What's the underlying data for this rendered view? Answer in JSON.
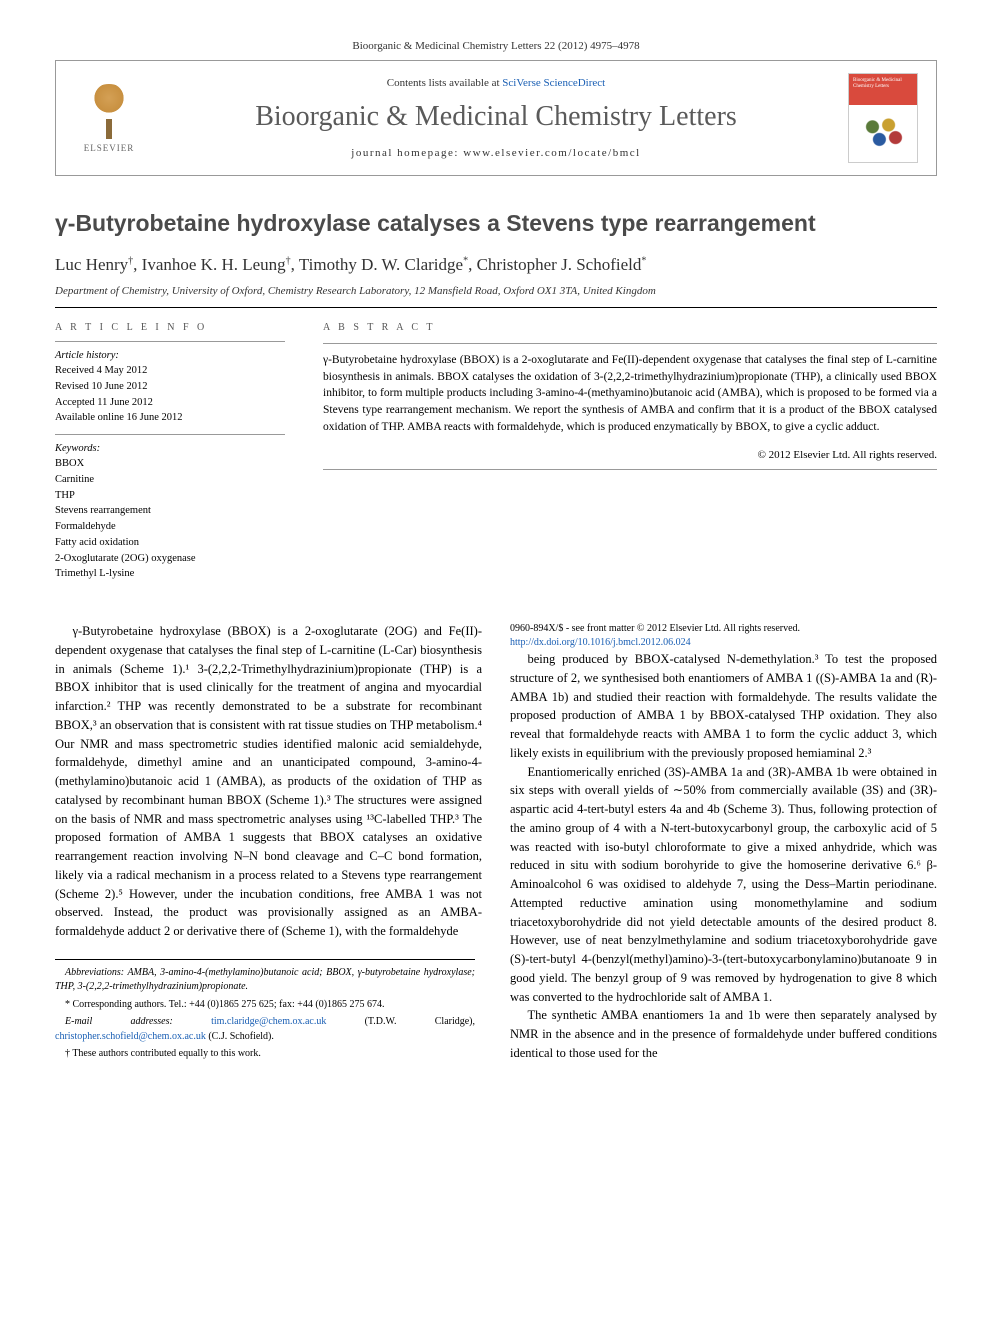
{
  "citation": "Bioorganic & Medicinal Chemistry Letters 22 (2012) 4975–4978",
  "header": {
    "publisher_name": "ELSEVIER",
    "contents_prefix": "Contents lists available at ",
    "contents_link": "SciVerse ScienceDirect",
    "journal_title": "Bioorganic & Medicinal Chemistry Letters",
    "homepage_prefix": "journal homepage: ",
    "homepage_url": "www.elsevier.com/locate/bmcl",
    "cover_caption": "Bioorganic & Medicinal Chemistry Letters"
  },
  "article": {
    "title": "γ-Butyrobetaine hydroxylase catalyses a Stevens type rearrangement",
    "authors_html": "Luc Henry †, Ivanhoe K. H. Leung †, Timothy D. W. Claridge *, Christopher J. Schofield *",
    "affiliation": "Department of Chemistry, University of Oxford, Chemistry Research Laboratory, 12 Mansfield Road, Oxford OX1 3TA, United Kingdom"
  },
  "info": {
    "head": "A R T I C L E   I N F O",
    "history_head": "Article history:",
    "history": [
      "Received 4 May 2012",
      "Revised 10 June 2012",
      "Accepted 11 June 2012",
      "Available online 16 June 2012"
    ],
    "keywords_head": "Keywords:",
    "keywords": [
      "BBOX",
      "Carnitine",
      "THP",
      "Stevens rearrangement",
      "Formaldehyde",
      "Fatty acid oxidation",
      "2-Oxoglutarate (2OG) oxygenase",
      "Trimethyl L-lysine"
    ]
  },
  "abstract": {
    "head": "A B S T R A C T",
    "text": "γ-Butyrobetaine hydroxylase (BBOX) is a 2-oxoglutarate and Fe(II)-dependent oxygenase that catalyses the final step of L-carnitine biosynthesis in animals. BBOX catalyses the oxidation of 3-(2,2,2-trimethylhydrazinium)propionate (THP), a clinically used BBOX inhibitor, to form multiple products including 3-amino-4-(methyamino)butanoic acid (AMBA), which is proposed to be formed via a Stevens type rearrangement mechanism. We report the synthesis of AMBA and confirm that it is a product of the BBOX catalysed oxidation of THP. AMBA reacts with formaldehyde, which is produced enzymatically by BBOX, to give a cyclic adduct.",
    "copyright": "© 2012 Elsevier Ltd. All rights reserved."
  },
  "body": {
    "p1": "γ-Butyrobetaine hydroxylase (BBOX) is a 2-oxoglutarate (2OG) and Fe(II)-dependent oxygenase that catalyses the final step of L-carnitine (L-Car) biosynthesis in animals (Scheme 1).¹ 3-(2,2,2-Trimethylhydrazinium)propionate (THP) is a BBOX inhibitor that is used clinically for the treatment of angina and myocardial infarction.² THP was recently demonstrated to be a substrate for recombinant BBOX,³ an observation that is consistent with rat tissue studies on THP metabolism.⁴ Our NMR and mass spectrometric studies identified malonic acid semialdehyde, formaldehyde, dimethyl amine and an unanticipated compound, 3-amino-4-(methylamino)butanoic acid 1 (AMBA), as products of the oxidation of THP as catalysed by recombinant human BBOX (Scheme 1).³ The structures were assigned on the basis of NMR and mass spectrometric analyses using ¹³C-labelled THP.³ The proposed formation of AMBA 1 suggests that BBOX catalyses an oxidative rearrangement reaction involving N–N bond cleavage and C–C bond formation, likely via a radical mechanism in a process related to a Stevens type rearrangement (Scheme 2).⁵ However, under the incubation conditions, free AMBA 1 was not observed. Instead, the product was provisionally assigned as an AMBA-formaldehyde adduct 2 or derivative there of (Scheme 1), with the formaldehyde",
    "p2": "being produced by BBOX-catalysed N-demethylation.³ To test the proposed structure of 2, we synthesised both enantiomers of AMBA 1 ((S)-AMBA 1a and (R)-AMBA 1b) and studied their reaction with formaldehyde. The results validate the proposed production of AMBA 1 by BBOX-catalysed THP oxidation. They also reveal that formaldehyde reacts with AMBA 1 to form the cyclic adduct 3, which likely exists in equilibrium with the previously proposed hemiaminal 2.³",
    "p3": "Enantiomerically enriched (3S)-AMBA 1a and (3R)-AMBA 1b were obtained in six steps with overall yields of ∼50% from commercially available (3S) and (3R)-aspartic acid 4-tert-butyl esters 4a and 4b (Scheme 3). Thus, following protection of the amino group of 4 with a N-tert-butoxycarbonyl group, the carboxylic acid of 5 was reacted with iso-butyl chloroformate to give a mixed anhydride, which was reduced in situ with sodium borohyride to give the homoserine derivative 6.⁶ β-Aminoalcohol 6 was oxidised to aldehyde 7, using the Dess–Martin periodinane. Attempted reductive amination using monomethylamine and sodium triacetoxyborohydride did not yield detectable amounts of the desired product 8. However, use of neat benzylmethylamine and sodium triacetoxyborohydride gave (S)-tert-butyl 4-(benzyl(methyl)amino)-3-(tert-butoxycarbonylamino)butanoate 9 in good yield. The benzyl group of 9 was removed by hydrogenation to give 8 which was converted to the hydrochloride salt of AMBA 1.",
    "p4": "The synthetic AMBA enantiomers 1a and 1b were then separately analysed by NMR in the absence and in the presence of formaldehyde under buffered conditions identical to those used for the"
  },
  "footnotes": {
    "abbrev": "Abbreviations: AMBA, 3-amino-4-(methylamino)butanoic acid; BBOX, γ-butyrobetaine hydroxylase; THP, 3-(2,2,2-trimethylhydrazinium)propionate.",
    "corr": "* Corresponding authors. Tel.: +44 (0)1865 275 625; fax: +44 (0)1865 275 674.",
    "email_label": "E-mail addresses: ",
    "email1": "tim.claridge@chem.ox.ac.uk",
    "email1_who": " (T.D.W. Claridge), ",
    "email2": "christopher.schofield@chem.ox.ac.uk",
    "email2_who": " (C.J. Schofield).",
    "equal": "† These authors contributed equally to this work."
  },
  "bottom": {
    "front_matter": "0960-894X/$ - see front matter © 2012 Elsevier Ltd. All rights reserved.",
    "doi": "http://dx.doi.org/10.1016/j.bmcl.2012.06.024"
  },
  "colors": {
    "link": "#1a5fb4",
    "title_gray": "#4a4a4a",
    "rule": "#000000"
  }
}
